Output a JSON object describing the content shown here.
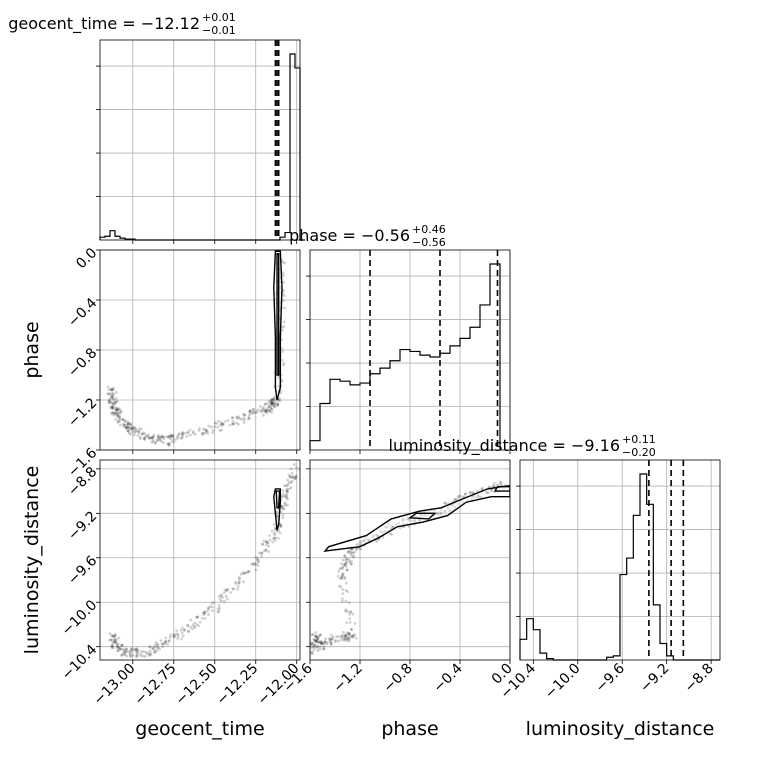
{
  "chart_data": {
    "type": "corner",
    "parameters": [
      "geocent_time",
      "phase",
      "luminosity_distance"
    ],
    "grid": true,
    "diagonal_titles": [
      {
        "param": "geocent_time",
        "label": "geocent_time = −12.12",
        "plus": "+0.01",
        "minus": "−0.01"
      },
      {
        "param": "phase",
        "label": "phase = −0.56",
        "plus": "+0.46",
        "minus": "−0.56"
      },
      {
        "param": "luminosity_distance",
        "label": "luminosity_distance = −9.16",
        "plus": "+0.11",
        "minus": "−0.20"
      }
    ],
    "axis_labels": {
      "geocent_time": "geocent_time",
      "phase": "phase",
      "luminosity_distance": "luminosity_distance"
    },
    "ranges": {
      "geocent_time": [
        -13.2,
        -11.98
      ],
      "phase": [
        -1.6,
        0.0
      ],
      "luminosity_distance": [
        -10.52,
        -8.72
      ]
    },
    "ticks": {
      "geocent_time": [
        {
          "v": -13.0,
          "t": "−13.00"
        },
        {
          "v": -12.75,
          "t": "−12.75"
        },
        {
          "v": -12.5,
          "t": "−12.50"
        },
        {
          "v": -12.25,
          "t": "−12.25"
        },
        {
          "v": -12.0,
          "t": "−12.00"
        }
      ],
      "phase": [
        {
          "v": -1.6,
          "t": "−1.6"
        },
        {
          "v": -1.2,
          "t": "−1.2"
        },
        {
          "v": -0.8,
          "t": "−0.8"
        },
        {
          "v": -0.4,
          "t": "−0.4"
        },
        {
          "v": 0.0,
          "t": "0.0"
        }
      ],
      "luminosity_distance": [
        {
          "v": -10.4,
          "t": "−10.4"
        },
        {
          "v": -10.0,
          "t": "−10.0"
        },
        {
          "v": -9.6,
          "t": "−9.6"
        },
        {
          "v": -9.2,
          "t": "−9.2"
        },
        {
          "v": -8.8,
          "t": "−8.8"
        }
      ]
    },
    "quantiles": {
      "geocent_time": [
        -12.13,
        -12.12,
        -12.11
      ],
      "phase": [
        -1.12,
        -0.56,
        -0.1
      ],
      "luminosity_distance": [
        -9.36,
        -9.16,
        -9.05
      ]
    },
    "histograms": {
      "geocent_time": {
        "edges_start": -13.2,
        "bin_width": 0.0305,
        "counts": [
          3,
          4,
          10,
          4,
          2,
          1,
          1,
          0,
          0,
          0,
          0,
          0,
          0,
          0,
          0,
          0,
          0,
          0,
          0,
          0,
          0,
          0,
          0,
          0,
          0,
          0,
          0,
          0,
          0,
          0,
          0,
          0,
          0,
          0,
          0,
          0,
          3,
          8,
          200,
          185,
          0
        ]
      },
      "phase": {
        "edges_start": -1.6,
        "bin_width": 0.08,
        "counts": [
          5,
          25,
          38,
          37,
          35,
          36,
          41,
          44,
          48,
          54,
          53,
          51,
          50,
          52,
          56,
          60,
          66,
          78,
          100
        ]
      },
      "luminosity_distance": {
        "edges_start": -10.52,
        "bin_width": 0.06,
        "counts": [
          15,
          30,
          22,
          5,
          1,
          0,
          0,
          0,
          0,
          0,
          0,
          0,
          0,
          2,
          3,
          62,
          74,
          105,
          135,
          113,
          40,
          12,
          3,
          0,
          0,
          0,
          0,
          0,
          0,
          0
        ]
      }
    },
    "scatter_paths": {
      "phase_vs_geocent_time": [
        [
          -13.13,
          -1.11
        ],
        [
          -13.12,
          -1.22
        ],
        [
          -13.1,
          -1.3
        ],
        [
          -13.05,
          -1.38
        ],
        [
          -13.0,
          -1.45
        ],
        [
          -12.9,
          -1.5
        ],
        [
          -12.8,
          -1.53
        ],
        [
          -12.7,
          -1.48
        ],
        [
          -12.5,
          -1.43
        ],
        [
          -12.35,
          -1.35
        ],
        [
          -12.2,
          -1.28
        ],
        [
          -12.15,
          -1.24
        ],
        [
          -12.12,
          -1.2
        ],
        [
          -12.1,
          -0.8
        ],
        [
          -12.1,
          -0.4
        ],
        [
          -12.1,
          -0.05
        ]
      ],
      "luminosity_distance_vs_geocent_time": [
        [
          -13.12,
          -10.3
        ],
        [
          -13.1,
          -10.4
        ],
        [
          -13.02,
          -10.46
        ],
        [
          -12.92,
          -10.45
        ],
        [
          -12.8,
          -10.37
        ],
        [
          -12.65,
          -10.22
        ],
        [
          -12.5,
          -10.05
        ],
        [
          -12.35,
          -9.82
        ],
        [
          -12.2,
          -9.55
        ],
        [
          -12.12,
          -9.35
        ],
        [
          -12.1,
          -9.15
        ],
        [
          -12.06,
          -9.0
        ],
        [
          -12.0,
          -8.78
        ]
      ],
      "luminosity_distance_vs_phase": [
        [
          -1.58,
          -10.46
        ],
        [
          -1.55,
          -10.3
        ],
        [
          -1.5,
          -10.4
        ],
        [
          -1.35,
          -10.3
        ],
        [
          -1.25,
          -10.32
        ],
        [
          -1.35,
          -9.78
        ],
        [
          -1.3,
          -9.62
        ],
        [
          -1.2,
          -9.48
        ],
        [
          -1.0,
          -9.38
        ],
        [
          -0.8,
          -9.26
        ],
        [
          -0.6,
          -9.2
        ],
        [
          -0.4,
          -9.08
        ],
        [
          -0.2,
          -9.0
        ],
        [
          -0.05,
          -8.95
        ]
      ]
    },
    "contours": {
      "phase_vs_geocent_time": [
        [
          [
            -12.13,
            -0.01
          ],
          [
            -12.1,
            -0.01
          ],
          [
            -12.09,
            -0.3
          ],
          [
            -12.1,
            -0.7
          ],
          [
            -12.1,
            -1.1
          ],
          [
            -12.12,
            -1.2
          ],
          [
            -12.13,
            -1.1
          ],
          [
            -12.13,
            -0.7
          ],
          [
            -12.14,
            -0.3
          ]
        ],
        [
          [
            -12.12,
            -0.03
          ],
          [
            -12.11,
            -0.03
          ],
          [
            -12.11,
            -0.5
          ],
          [
            -12.11,
            -1.0
          ],
          [
            -12.12,
            -1.0
          ],
          [
            -12.12,
            -0.5
          ]
        ]
      ],
      "luminosity_distance_vs_geocent_time": [
        [
          [
            -12.13,
            -8.98
          ],
          [
            -12.1,
            -8.98
          ],
          [
            -12.1,
            -9.1
          ],
          [
            -12.11,
            -9.3
          ],
          [
            -12.12,
            -9.35
          ],
          [
            -12.13,
            -9.2
          ],
          [
            -12.14,
            -9.05
          ]
        ],
        [
          [
            -12.125,
            -9.0
          ],
          [
            -12.105,
            -9.0
          ],
          [
            -12.11,
            -9.15
          ],
          [
            -12.12,
            -9.15
          ]
        ]
      ],
      "luminosity_distance_vs_phase": [
        [
          [
            -1.48,
            -9.54
          ],
          [
            -1.2,
            -9.5
          ],
          [
            -1.05,
            -9.42
          ],
          [
            -0.9,
            -9.32
          ],
          [
            -0.7,
            -9.28
          ],
          [
            -0.5,
            -9.22
          ],
          [
            -0.35,
            -9.1
          ],
          [
            -0.15,
            -9.05
          ],
          [
            0.0,
            -9.05
          ],
          [
            0.0,
            -8.95
          ],
          [
            -0.18,
            -8.98
          ],
          [
            -0.4,
            -9.08
          ],
          [
            -0.55,
            -9.15
          ],
          [
            -0.72,
            -9.18
          ],
          [
            -0.95,
            -9.25
          ],
          [
            -1.15,
            -9.4
          ],
          [
            -1.45,
            -9.5
          ]
        ],
        [
          [
            -0.75,
            -9.2
          ],
          [
            -0.6,
            -9.2
          ],
          [
            -0.65,
            -9.25
          ],
          [
            -0.8,
            -9.24
          ]
        ],
        [
          [
            -0.12,
            -9.0
          ],
          [
            0.0,
            -9.0
          ],
          [
            0.0,
            -8.96
          ],
          [
            -0.1,
            -8.96
          ]
        ]
      ]
    }
  }
}
